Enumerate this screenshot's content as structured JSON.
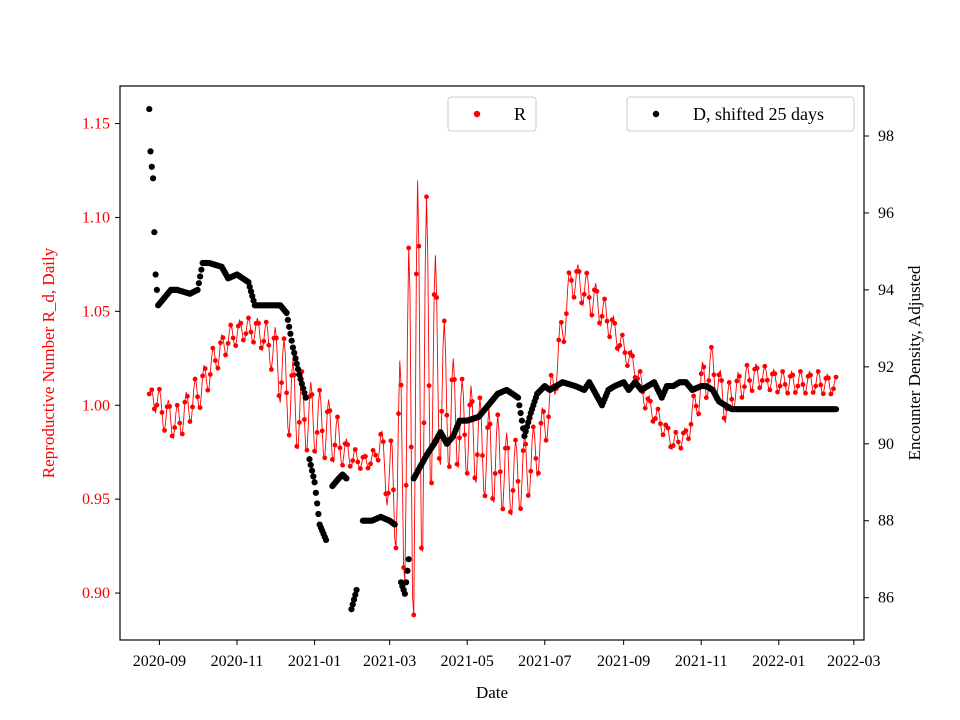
{
  "chart_data": {
    "type": "scatter",
    "xlabel": "Date",
    "ylabel_left": "Reproductive Number R_d, Daily",
    "ylabel_right": "Encounter Density, Adjusted",
    "x_ticks": [
      "2020-09",
      "2020-11",
      "2021-01",
      "2021-03",
      "2021-05",
      "2021-07",
      "2021-09",
      "2021-11",
      "2022-01",
      "2022-03"
    ],
    "xlim": [
      "2020-08-01",
      "2022-03-09"
    ],
    "y_left_ticks": [
      "0.90",
      "0.95",
      "1.00",
      "1.05",
      "1.10",
      "1.15"
    ],
    "y_left_lim": [
      0.875,
      1.17
    ],
    "y_right_ticks": [
      "86",
      "88",
      "90",
      "92",
      "94",
      "96",
      "98"
    ],
    "y_right_lim": [
      84.9,
      99.3
    ],
    "colors": {
      "R": "#ff0000",
      "D": "#000000",
      "left_axis_text": "#ff0000"
    },
    "legends": [
      {
        "label": "R",
        "color": "#ff0000",
        "position": "top-center"
      },
      {
        "label": "D, shifted 25 days",
        "color": "#000000",
        "position": "top-right"
      }
    ],
    "series": [
      {
        "name": "R",
        "axis": "left",
        "color": "#ff0000",
        "note": "daily values oscillating around a smooth trend; trend given at anchor dates with oscillation amplitude",
        "x": [
          "2020-08-24",
          "2020-08-28",
          "2020-09-05",
          "2020-09-15",
          "2020-09-25",
          "2020-10-05",
          "2020-10-15",
          "2020-10-25",
          "2020-11-05",
          "2020-11-15",
          "2020-11-25",
          "2020-12-05",
          "2020-12-15",
          "2020-12-25",
          "2021-01-05",
          "2021-01-15",
          "2021-01-25",
          "2021-02-05",
          "2021-02-15",
          "2021-02-22",
          "2021-03-01",
          "2021-03-10",
          "2021-03-20",
          "2021-03-28",
          "2021-04-05",
          "2021-04-15",
          "2021-04-25",
          "2021-05-05",
          "2021-05-15",
          "2021-05-25",
          "2021-06-05",
          "2021-06-15",
          "2021-06-25",
          "2021-07-05",
          "2021-07-15",
          "2021-07-22",
          "2021-08-01",
          "2021-08-10",
          "2021-08-20",
          "2021-09-01",
          "2021-09-10",
          "2021-09-20",
          "2021-10-01",
          "2021-10-10",
          "2021-10-20",
          "2021-11-01",
          "2021-11-10",
          "2021-11-20",
          "2021-12-01",
          "2021-12-10",
          "2021-12-20",
          "2022-01-01",
          "2022-01-15",
          "2022-02-01",
          "2022-02-15"
        ],
        "values": [
          1.006,
          1.005,
          0.995,
          0.99,
          1.0,
          1.01,
          1.025,
          1.035,
          1.04,
          1.04,
          1.035,
          1.02,
          1.0,
          0.995,
          0.99,
          0.985,
          0.975,
          0.97,
          0.97,
          0.98,
          0.955,
          0.97,
          1.0,
          1.02,
          1.025,
          1.0,
          0.99,
          0.985,
          0.975,
          0.97,
          0.96,
          0.965,
          0.975,
          1.0,
          1.04,
          1.068,
          1.062,
          1.055,
          1.045,
          1.03,
          1.02,
          1.0,
          0.99,
          0.98,
          0.983,
          1.01,
          1.02,
          1.0,
          1.01,
          1.015,
          1.015,
          1.012,
          1.012,
          1.012,
          1.01
        ],
        "amplitude": [
          0.0,
          0.008,
          0.009,
          0.01,
          0.01,
          0.01,
          0.008,
          0.007,
          0.006,
          0.007,
          0.009,
          0.02,
          0.025,
          0.02,
          0.018,
          0.016,
          0.008,
          0.004,
          0.004,
          0.008,
          0.02,
          0.06,
          0.12,
          0.1,
          0.06,
          0.035,
          0.025,
          0.025,
          0.025,
          0.025,
          0.02,
          0.02,
          0.015,
          0.012,
          0.012,
          0.01,
          0.01,
          0.01,
          0.008,
          0.006,
          0.006,
          0.006,
          0.005,
          0.005,
          0.005,
          0.012,
          0.012,
          0.01,
          0.008,
          0.008,
          0.006,
          0.006,
          0.006,
          0.006,
          0.005
        ]
      },
      {
        "name": "D, shifted 25 days",
        "axis": "right",
        "color": "#000000",
        "x": [
          "2020-08-24",
          "2020-08-25",
          "2020-08-26",
          "2020-08-27",
          "2020-08-28",
          "2020-08-29",
          "2020-08-31",
          "2020-09-05",
          "2020-09-10",
          "2020-09-15",
          "2020-09-25",
          "2020-10-01",
          "2020-10-05",
          "2020-10-10",
          "2020-10-20",
          "2020-10-25",
          "2020-11-01",
          "2020-11-10",
          "2020-11-15",
          "2020-11-25",
          "2020-12-05",
          "2020-12-10",
          "2020-12-15",
          "2020-12-20",
          "2020-12-25",
          "2020-12-28",
          "2021-01-01",
          "2021-01-05",
          "2021-01-10",
          "2021-01-15",
          "2021-01-20",
          "2021-01-23",
          "2021-01-26",
          "2021-01-30",
          "2021-02-03",
          "2021-02-08",
          "2021-02-15",
          "2021-02-22",
          "2021-03-01",
          "2021-03-05",
          "2021-03-10",
          "2021-03-13",
          "2021-03-16",
          "2021-03-20",
          "2021-03-25",
          "2021-03-30",
          "2021-04-05",
          "2021-04-10",
          "2021-04-15",
          "2021-04-20",
          "2021-04-25",
          "2021-05-01",
          "2021-05-10",
          "2021-05-20",
          "2021-05-25",
          "2021-06-01",
          "2021-06-10",
          "2021-06-15",
          "2021-06-20",
          "2021-06-25",
          "2021-07-01",
          "2021-07-05",
          "2021-07-15",
          "2021-07-25",
          "2021-08-01",
          "2021-08-05",
          "2021-08-10",
          "2021-08-15",
          "2021-08-20",
          "2021-08-25",
          "2021-09-01",
          "2021-09-05",
          "2021-09-10",
          "2021-09-15",
          "2021-09-20",
          "2021-09-25",
          "2021-10-01",
          "2021-10-05",
          "2021-10-10",
          "2021-10-15",
          "2021-10-20",
          "2021-10-25",
          "2021-11-01",
          "2021-11-05",
          "2021-11-10",
          "2021-11-15",
          "2021-11-20",
          "2021-11-25",
          "2021-12-01",
          "2021-12-15",
          "2022-01-01",
          "2022-01-15",
          "2022-02-01",
          "2022-02-15"
        ],
        "values": [
          98.7,
          97.6,
          97.2,
          96.9,
          95.5,
          94.4,
          93.6,
          93.8,
          94.0,
          94.0,
          93.9,
          94.0,
          94.7,
          94.7,
          94.6,
          94.3,
          94.4,
          94.2,
          93.6,
          93.6,
          93.6,
          93.4,
          92.5,
          91.8,
          91.2,
          89.6,
          89.0,
          87.9,
          87.5,
          88.9,
          89.1,
          89.2,
          89.1,
          85.7,
          86.2,
          88.0,
          88.0,
          88.1,
          88.0,
          87.9,
          86.4,
          86.1,
          87.0,
          89.1,
          89.4,
          89.7,
          90.0,
          90.3,
          90.0,
          90.2,
          90.6,
          90.6,
          90.7,
          91.1,
          91.3,
          91.4,
          91.2,
          90.2,
          90.8,
          91.3,
          91.5,
          91.4,
          91.6,
          91.5,
          91.4,
          91.6,
          91.3,
          91.0,
          91.4,
          91.5,
          91.6,
          91.4,
          91.6,
          91.4,
          91.5,
          91.6,
          91.2,
          91.5,
          91.5,
          91.6,
          91.6,
          91.4,
          91.5,
          91.5,
          91.4,
          91.1,
          91.0,
          90.9,
          90.9,
          90.9,
          90.9,
          90.9,
          90.9,
          90.9
        ]
      }
    ]
  }
}
